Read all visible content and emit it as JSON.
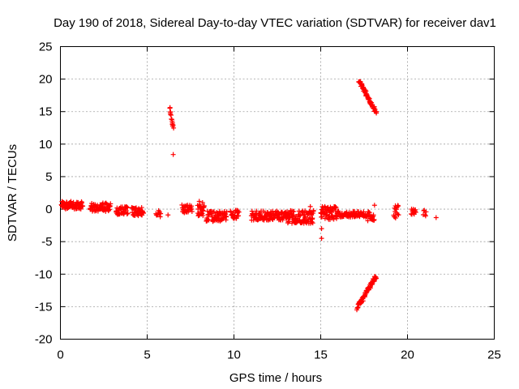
{
  "chart_data": {
    "type": "scatter",
    "title": "Day 190 of 2018, Sidereal Day-to-day VTEC variation (SDTVAR) for receiver dav1",
    "xlabel": "GPS time / hours",
    "ylabel": "SDTVAR / TECUs",
    "xlim": [
      0,
      25
    ],
    "ylim": [
      -20,
      25
    ],
    "xticks": [
      0,
      5,
      10,
      15,
      20,
      25
    ],
    "yticks": [
      -20,
      -15,
      -10,
      -5,
      0,
      5,
      10,
      15,
      20,
      25
    ],
    "grid": true,
    "marker": "+",
    "color": "#ff0000",
    "series": [
      {
        "name": "dav1",
        "segments": [
          {
            "x0": 0.05,
            "x1": 1.3,
            "y": 0.6,
            "spread": 1.2,
            "n": 70
          },
          {
            "x0": 1.7,
            "x1": 2.9,
            "y": 0.3,
            "spread": 1.3,
            "n": 60
          },
          {
            "x0": 3.2,
            "x1": 3.9,
            "y": -0.2,
            "spread": 1.3,
            "n": 35
          },
          {
            "x0": 4.1,
            "x1": 4.8,
            "y": -0.4,
            "spread": 1.3,
            "n": 35
          },
          {
            "x0": 5.5,
            "x1": 5.8,
            "y": -0.7,
            "spread": 1.0,
            "n": 10
          },
          {
            "x0": 7.0,
            "x1": 7.6,
            "y": 0.0,
            "spread": 1.3,
            "n": 30
          },
          {
            "x0": 7.9,
            "x1": 8.3,
            "y": 0.0,
            "spread": 2.2,
            "n": 28
          },
          {
            "x0": 8.4,
            "x1": 9.6,
            "y": -1.1,
            "spread": 1.6,
            "n": 70
          },
          {
            "x0": 9.8,
            "x1": 10.3,
            "y": -0.8,
            "spread": 1.3,
            "n": 22
          },
          {
            "x0": 11.0,
            "x1": 13.0,
            "y": -1.0,
            "spread": 1.4,
            "n": 110
          },
          {
            "x0": 13.0,
            "x1": 14.6,
            "y": -1.2,
            "spread": 2.0,
            "n": 100
          },
          {
            "x0": 15.0,
            "x1": 16.0,
            "y": -0.6,
            "spread": 2.0,
            "n": 60
          },
          {
            "x0": 16.0,
            "x1": 17.6,
            "y": -0.8,
            "spread": 0.9,
            "n": 70
          },
          {
            "x0": 17.6,
            "x1": 18.1,
            "y": -1.1,
            "spread": 1.4,
            "n": 24
          },
          {
            "x0": 19.2,
            "x1": 19.5,
            "y": -0.4,
            "spread": 2.0,
            "n": 14
          },
          {
            "x0": 20.2,
            "x1": 20.5,
            "y": -0.6,
            "spread": 1.4,
            "n": 12
          },
          {
            "x0": 20.9,
            "x1": 21.1,
            "y": -0.5,
            "spread": 1.2,
            "n": 6
          }
        ],
        "arcs": [
          {
            "x0": 6.3,
            "x1": 6.5,
            "y0": 15.5,
            "y1": 12.5,
            "n": 16
          },
          {
            "x0": 17.2,
            "x1": 18.2,
            "y0": 19.8,
            "y1": 14.8,
            "n": 60
          },
          {
            "x0": 17.1,
            "x1": 18.2,
            "y0": -15.2,
            "y1": -10.3,
            "n": 70
          }
        ],
        "points": [
          [
            6.5,
            8.4
          ],
          [
            6.2,
            -0.9
          ],
          [
            15.05,
            -4.5
          ],
          [
            15.05,
            -3.0
          ],
          [
            18.1,
            0.6
          ],
          [
            19.3,
            0.5
          ],
          [
            21.65,
            -1.3
          ],
          [
            14.4,
            0.4
          ],
          [
            10.2,
            -0.6
          ],
          [
            8.0,
            1.2
          ]
        ]
      }
    ]
  }
}
